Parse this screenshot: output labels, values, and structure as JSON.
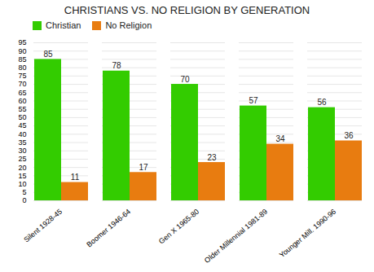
{
  "chart_data": {
    "type": "bar",
    "title": "CHRISTIANS VS. NO RELIGION BY GENERATION",
    "categories": [
      "Silent 1928-45",
      "Boomer 1946-64",
      "Gen X 1965-80",
      "Older Millennial 1981-89",
      "Younger Mill. 1990-96"
    ],
    "series": [
      {
        "name": "Christian",
        "color": "#33cc00",
        "values": [
          85,
          78,
          70,
          57,
          56
        ]
      },
      {
        "name": "No Religion",
        "color": "#e87c10",
        "values": [
          11,
          17,
          23,
          34,
          36
        ]
      }
    ],
    "ylim": [
      0,
      95
    ],
    "yticks": [
      0,
      5,
      10,
      15,
      20,
      25,
      30,
      35,
      40,
      45,
      50,
      55,
      60,
      65,
      70,
      75,
      80,
      85,
      90,
      95
    ],
    "grid": true,
    "data_labels": true,
    "legend": "upper left"
  }
}
